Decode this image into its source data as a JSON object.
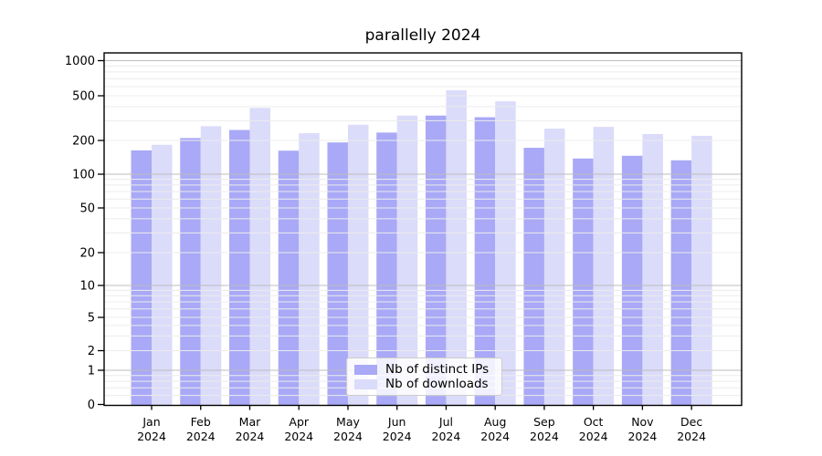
{
  "chart_data": {
    "type": "bar",
    "title": "parallelly 2024",
    "categories": [
      "Jan",
      "Feb",
      "Mar",
      "Apr",
      "May",
      "Jun",
      "Jul",
      "Aug",
      "Sep",
      "Oct",
      "Nov",
      "Dec"
    ],
    "year_label": "2024",
    "series": [
      {
        "name": "Nb of distinct IPs",
        "color": "#a9a9f7",
        "values": [
          163,
          210,
          248,
          162,
          192,
          235,
          333,
          322,
          172,
          138,
          146,
          133
        ]
      },
      {
        "name": "Nb of downloads",
        "color": "#dbdbfa",
        "values": [
          183,
          268,
          390,
          232,
          276,
          333,
          557,
          446,
          255,
          264,
          228,
          220
        ]
      }
    ],
    "y_axis": {
      "scale": "log",
      "ticks": [
        1000,
        500,
        200,
        100,
        50,
        20,
        10,
        5,
        2,
        1,
        0
      ],
      "ylim": [
        0,
        1000
      ]
    },
    "x_axis": {
      "tick_labels_line1": [
        "Jan",
        "Feb",
        "Mar",
        "Apr",
        "May",
        "Jun",
        "Jul",
        "Aug",
        "Sep",
        "Oct",
        "Nov",
        "Dec"
      ],
      "tick_labels_line2": "2024"
    },
    "grid": true,
    "grid_major_color": "#bcbcbc",
    "grid_minor_color": "#ececec",
    "legend": {
      "position": "lower-center",
      "entries": [
        "Nb of distinct IPs",
        "Nb of downloads"
      ]
    }
  }
}
